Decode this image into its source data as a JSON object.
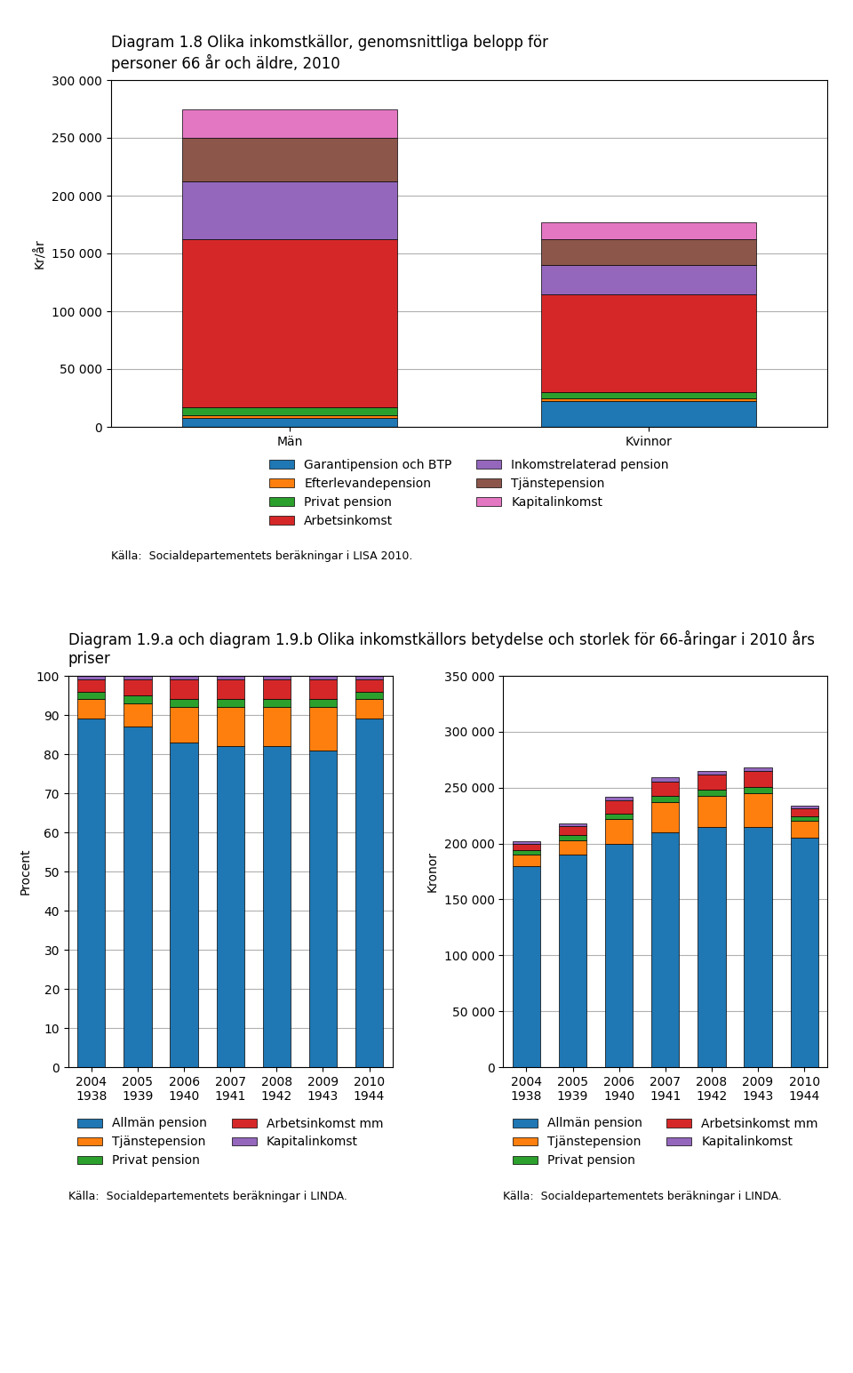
{
  "chart_data": [
    {
      "type": "bar",
      "stacked": true,
      "grid": true,
      "legend": "upper center",
      "title": "Diagram 1.8 Olika inkomstkällor, genomsnittliga belopp för\npersoner 66 år och äldre, 2010",
      "y_label": "Kr/år",
      "annotations": [
        "Källa:  Socialdepartementets beräkningar i LISA 2010."
      ],
      "categories": [
        "Män",
        "Kvinnor"
      ],
      "series": [
        {
          "name": "Garantipension och BTP",
          "values": [
            8000,
            22000
          ]
        },
        {
          "name": "Efterlevandepension",
          "values": [
            2000,
            3000
          ]
        },
        {
          "name": "Privat pension",
          "values": [
            7000,
            5000
          ]
        },
        {
          "name": "Arbetsinkomst",
          "values": [
            145000,
            85000
          ]
        },
        {
          "name": "Inkomstrelaterad pension",
          "values": [
            50000,
            25000
          ]
        },
        {
          "name": "Tjänstepension",
          "values": [
            38000,
            22000
          ]
        },
        {
          "name": "Kapitalinkomst",
          "values": [
            25000,
            15000
          ]
        }
      ],
      "ylim": [
        0,
        300000
      ],
      "yticks": [
        0,
        {
          "value": 50000,
          "label": "50 000"
        },
        {
          "value": 100000,
          "label": "100 000"
        },
        {
          "value": 150000,
          "label": "150 000"
        },
        {
          "value": 200000,
          "label": "200 000"
        },
        {
          "value": 250000,
          "label": "250 000"
        },
        {
          "value": 300000,
          "label": "300 000"
        }
      ]
    },
    {
      "type": "bar",
      "stacked": true,
      "grid": true,
      "legend": "upper center",
      "title": "Diagram 1.9.a och diagram 1.9.b Olika inkomstkällors betydelse och storlek för 66-åringar i 2010 års priser",
      "y_label": "Procent",
      "annotations": [
        "Källa:  Socialdepartementets beräkningar i LINDA."
      ],
      "categories": [
        "2004\n1938",
        "2005\n1939",
        "2006\n1940",
        "2007\n1941",
        "2008\n1942",
        "2009\n1943",
        "2010\n1944"
      ],
      "series": [
        {
          "name": "Allmän pension",
          "values": [
            89,
            87,
            83,
            82,
            82,
            81,
            89
          ]
        },
        {
          "name": "Tjänstepension",
          "values": [
            5,
            6,
            9,
            10,
            10,
            11,
            5
          ]
        },
        {
          "name": "Privat pension",
          "values": [
            2,
            2,
            2,
            2,
            2,
            2,
            2
          ]
        },
        {
          "name": "Arbetsinkomst mm",
          "values": [
            3,
            4,
            5,
            5,
            5,
            5,
            3
          ]
        },
        {
          "name": "Kapitalinkomst",
          "values": [
            1,
            1,
            1,
            1,
            1,
            1,
            1
          ]
        }
      ],
      "ylim": [
        0,
        100
      ],
      "yticks": [
        0,
        10,
        20,
        30,
        40,
        50,
        60,
        70,
        80,
        90,
        100
      ]
    },
    {
      "type": "bar",
      "stacked": true,
      "grid": true,
      "legend": "upper center",
      "y_label": "Kronor",
      "annotations": [
        "Källa:  Socialdepartementets beräkningar i LINDA."
      ],
      "categories": [
        "2004\n1938",
        "2005\n1939",
        "2006\n1940",
        "2007\n1941",
        "2008\n1942",
        "2009\n1943",
        "2010\n1944"
      ],
      "series": [
        {
          "name": "Allmän pension",
          "values": [
            180000,
            190000,
            200000,
            210000,
            215000,
            215000,
            205000
          ]
        },
        {
          "name": "Tjänstepension",
          "values": [
            10000,
            13000,
            22000,
            27000,
            28000,
            30000,
            15000
          ]
        },
        {
          "name": "Privat pension",
          "values": [
            4000,
            4500,
            5000,
            5500,
            5500,
            5500,
            4500
          ]
        },
        {
          "name": "Arbetsinkomst mm",
          "values": [
            6000,
            8000,
            12000,
            13000,
            13000,
            14000,
            7000
          ]
        },
        {
          "name": "Kapitalinkomst",
          "values": [
            2000,
            2500,
            3000,
            3500,
            3500,
            3500,
            2500
          ]
        }
      ],
      "ylim": [
        0,
        350000
      ],
      "yticks": [
        0,
        {
          "value": 50000,
          "label": "50 000"
        },
        {
          "value": 100000,
          "label": "100 000"
        },
        {
          "value": 150000,
          "label": "150 000"
        },
        {
          "value": 200000,
          "label": "200 000"
        },
        {
          "value": 250000,
          "label": "250 000"
        },
        {
          "value": 300000,
          "label": "300 000"
        },
        {
          "value": 350000,
          "label": "350 000"
        }
      ]
    }
  ]
}
